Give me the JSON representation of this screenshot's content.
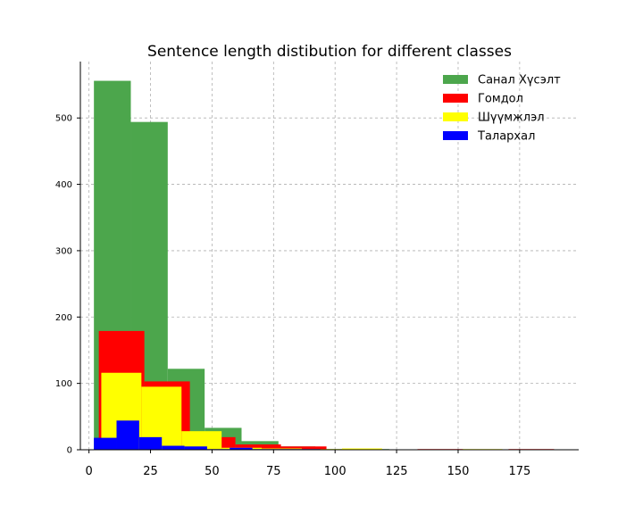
{
  "chart_data": {
    "type": "bar",
    "title": "Sentence length distibution for different classes",
    "xlabel": "",
    "ylabel": "",
    "xlim": [
      -3.5,
      199
    ],
    "ylim": [
      0,
      585
    ],
    "x_ticks": [
      0,
      25,
      50,
      75,
      100,
      125,
      150,
      175
    ],
    "y_ticks": [
      0,
      100,
      200,
      300,
      400,
      500
    ],
    "grid": true,
    "legend_position": "top-right",
    "series": [
      {
        "name": "Санал Хүсэлт",
        "color": "#4ca64c",
        "bins": [
          {
            "x0": 2,
            "x1": 17,
            "count": 556
          },
          {
            "x0": 17,
            "x1": 32,
            "count": 494
          },
          {
            "x0": 32,
            "x1": 47,
            "count": 122
          },
          {
            "x0": 47,
            "x1": 62,
            "count": 33
          },
          {
            "x0": 62,
            "x1": 77,
            "count": 13
          },
          {
            "x0": 77,
            "x1": 92,
            "count": 5
          },
          {
            "x0": 92,
            "x1": 107,
            "count": 1
          },
          {
            "x0": 107,
            "x1": 122,
            "count": 1
          }
        ]
      },
      {
        "name": "Гомдол",
        "color": "#ff0000",
        "bins": [
          {
            "x0": 4,
            "x1": 22.5,
            "count": 179
          },
          {
            "x0": 22.5,
            "x1": 41,
            "count": 103
          },
          {
            "x0": 41,
            "x1": 59.5,
            "count": 19
          },
          {
            "x0": 59.5,
            "x1": 78,
            "count": 8
          },
          {
            "x0": 78,
            "x1": 96.5,
            "count": 5
          },
          {
            "x0": 96.5,
            "x1": 115,
            "count": 0
          },
          {
            "x0": 115,
            "x1": 133.5,
            "count": 0
          },
          {
            "x0": 133.5,
            "x1": 152,
            "count": 1
          },
          {
            "x0": 152,
            "x1": 170.5,
            "count": 0
          },
          {
            "x0": 170.5,
            "x1": 189,
            "count": 1
          }
        ]
      },
      {
        "name": "Шүүмжлэл",
        "color": "#ffff00",
        "bins": [
          {
            "x0": 5,
            "x1": 21.3,
            "count": 116
          },
          {
            "x0": 21.3,
            "x1": 37.6,
            "count": 95
          },
          {
            "x0": 37.6,
            "x1": 53.9,
            "count": 28
          },
          {
            "x0": 53.9,
            "x1": 70.2,
            "count": 3
          },
          {
            "x0": 70.2,
            "x1": 86.5,
            "count": 2
          },
          {
            "x0": 86.5,
            "x1": 102.8,
            "count": 1
          },
          {
            "x0": 102.8,
            "x1": 119.1,
            "count": 2
          },
          {
            "x0": 119.1,
            "x1": 135.4,
            "count": 0
          },
          {
            "x0": 135.4,
            "x1": 151.7,
            "count": 0
          },
          {
            "x0": 151.7,
            "x1": 168,
            "count": 1
          }
        ]
      },
      {
        "name": "Талархал",
        "color": "#0000ff",
        "bins": [
          {
            "x0": 2,
            "x1": 11.2,
            "count": 18
          },
          {
            "x0": 11.2,
            "x1": 20.4,
            "count": 44
          },
          {
            "x0": 20.4,
            "x1": 29.6,
            "count": 19
          },
          {
            "x0": 29.6,
            "x1": 38.8,
            "count": 6
          },
          {
            "x0": 38.8,
            "x1": 48,
            "count": 5
          },
          {
            "x0": 48,
            "x1": 57.2,
            "count": 1
          },
          {
            "x0": 57.2,
            "x1": 66.4,
            "count": 3
          },
          {
            "x0": 66.4,
            "x1": 75.6,
            "count": 1
          },
          {
            "x0": 75.6,
            "x1": 84.8,
            "count": 1
          },
          {
            "x0": 84.8,
            "x1": 94,
            "count": 1
          }
        ]
      }
    ]
  }
}
